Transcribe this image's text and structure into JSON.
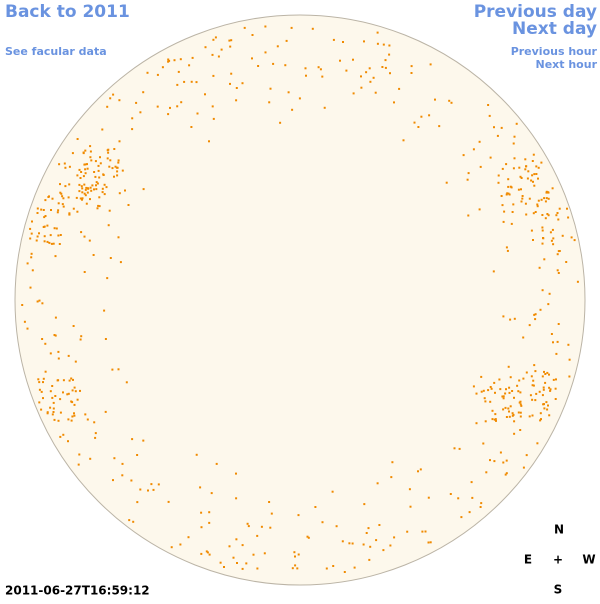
{
  "links": {
    "back": "Back to 2011",
    "facular": "See facular data",
    "previous_day": "Previous day",
    "next_day": "Next day",
    "previous_hour": "Previous hour",
    "next_hour": "Next hour"
  },
  "timestamp": "2011-06-27T16:59:12",
  "compass": {
    "north": "N",
    "east": "E",
    "center": "+",
    "west": "W",
    "south": "S"
  }
}
